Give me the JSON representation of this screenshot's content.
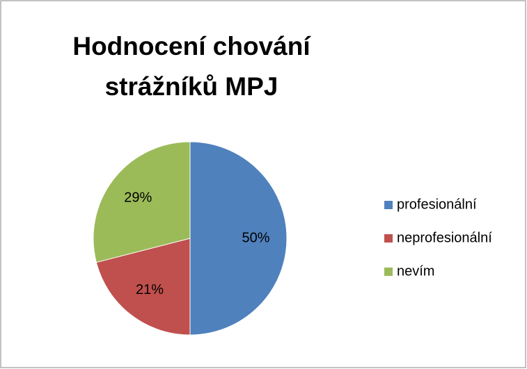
{
  "chart_data": {
    "type": "pie",
    "title": "Hodnocení chování strážníků MPJ",
    "categories": [
      "profesionální",
      "neprofesionální",
      "nevím"
    ],
    "values": [
      50,
      21,
      29
    ],
    "value_labels": [
      "50%",
      "21%",
      "29%"
    ],
    "colors": [
      "#4f81bd",
      "#c0504d",
      "#9bbb59"
    ],
    "legend": "right"
  }
}
